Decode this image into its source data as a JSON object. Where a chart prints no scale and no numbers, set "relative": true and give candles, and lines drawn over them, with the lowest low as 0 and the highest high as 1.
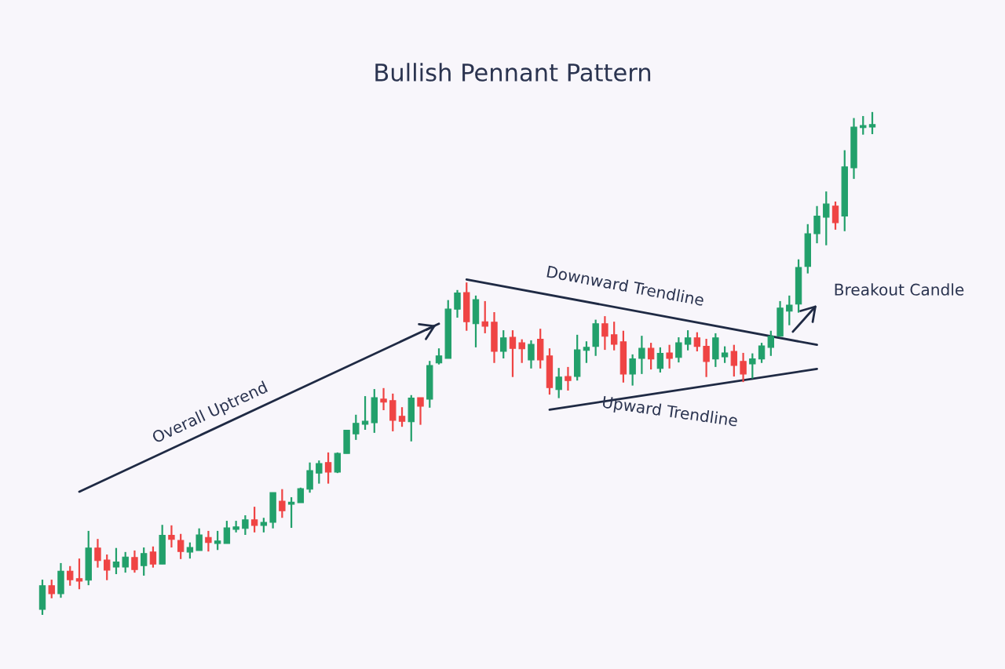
{
  "chart_data": {
    "type": "candlestick",
    "title": "Bullish Pennant Pattern",
    "relative": true,
    "tick_labels": false,
    "legend": false,
    "categories": [
      null,
      null,
      null,
      null,
      null,
      null,
      null,
      null,
      null,
      null,
      null,
      null,
      null,
      null,
      null,
      null,
      null,
      null,
      null,
      null,
      null,
      null,
      null,
      null,
      null,
      null,
      null,
      null,
      null,
      null,
      null,
      null,
      null,
      null,
      null,
      null,
      null,
      null,
      null,
      null,
      null,
      null,
      null,
      null,
      null,
      null,
      null,
      null,
      null,
      null,
      null,
      null,
      null,
      null,
      null,
      null,
      null,
      null,
      null,
      null,
      null,
      null,
      null,
      null,
      null,
      null,
      null,
      null,
      null,
      null,
      null,
      null,
      null,
      null,
      null,
      null,
      null,
      null,
      null,
      null,
      null,
      null,
      null,
      null,
      null,
      null,
      null,
      null,
      null,
      null,
      null
    ],
    "ohlc": [
      [
        0.011,
        0.07,
        0,
        0.058
      ],
      [
        0.058,
        0.07,
        0.033,
        0.042
      ],
      [
        0.042,
        0.103,
        0.034,
        0.087
      ],
      [
        0.087,
        0.097,
        0.058,
        0.07
      ],
      [
        0.072,
        0.112,
        0.051,
        0.067
      ],
      [
        0.069,
        0.167,
        0.059,
        0.133
      ],
      [
        0.133,
        0.151,
        0.094,
        0.108
      ],
      [
        0.109,
        0.12,
        0.069,
        0.089
      ],
      [
        0.095,
        0.133,
        0.081,
        0.105
      ],
      [
        0.095,
        0.125,
        0.084,
        0.115
      ],
      [
        0.114,
        0.128,
        0.084,
        0.09
      ],
      [
        0.098,
        0.134,
        0.078,
        0.122
      ],
      [
        0.125,
        0.136,
        0.094,
        0.101
      ],
      [
        0.101,
        0.179,
        0.101,
        0.158
      ],
      [
        0.158,
        0.178,
        0.134,
        0.15
      ],
      [
        0.148,
        0.161,
        0.111,
        0.126
      ],
      [
        0.125,
        0.144,
        0.112,
        0.134
      ],
      [
        0.128,
        0.172,
        0.128,
        0.159
      ],
      [
        0.154,
        0.167,
        0.126,
        0.144
      ],
      [
        0.142,
        0.167,
        0.129,
        0.147
      ],
      [
        0.142,
        0.187,
        0.142,
        0.173
      ],
      [
        0.17,
        0.187,
        0.164,
        0.175
      ],
      [
        0.172,
        0.198,
        0.159,
        0.189
      ],
      [
        0.189,
        0.215,
        0.164,
        0.178
      ],
      [
        0.178,
        0.193,
        0.164,
        0.184
      ],
      [
        0.184,
        0.243,
        0.172,
        0.243
      ],
      [
        0.226,
        0.25,
        0.193,
        0.207
      ],
      [
        0.22,
        0.234,
        0.173,
        0.223
      ],
      [
        0.223,
        0.253,
        0.223,
        0.251
      ],
      [
        0.25,
        0.303,
        0.243,
        0.287
      ],
      [
        0.282,
        0.307,
        0.261,
        0.301
      ],
      [
        0.303,
        0.323,
        0.261,
        0.284
      ],
      [
        0.284,
        0.323,
        0.282,
        0.321
      ],
      [
        0.321,
        0.367,
        0.321,
        0.367
      ],
      [
        0.36,
        0.398,
        0.348,
        0.381
      ],
      [
        0.379,
        0.435,
        0.368,
        0.385
      ],
      [
        0.382,
        0.449,
        0.362,
        0.432
      ],
      [
        0.429,
        0.451,
        0.407,
        0.423
      ],
      [
        0.426,
        0.44,
        0.365,
        0.387
      ],
      [
        0.395,
        0.413,
        0.374,
        0.385
      ],
      [
        0.384,
        0.437,
        0.345,
        0.431
      ],
      [
        0.432,
        0.432,
        0.378,
        0.415
      ],
      [
        0.429,
        0.505,
        0.412,
        0.496
      ],
      [
        0.501,
        0.53,
        0.498,
        0.515
      ],
      [
        0.51,
        0.626,
        0.51,
        0.608
      ],
      [
        0.608,
        0.646,
        0.591,
        0.64
      ],
      [
        0.641,
        0.661,
        0.565,
        0.583
      ],
      [
        0.579,
        0.635,
        0.532,
        0.627
      ],
      [
        0.583,
        0.624,
        0.56,
        0.574
      ],
      [
        0.582,
        0.602,
        0.501,
        0.524
      ],
      [
        0.524,
        0.566,
        0.51,
        0.551
      ],
      [
        0.552,
        0.566,
        0.473,
        0.53
      ],
      [
        0.541,
        0.548,
        0.501,
        0.529
      ],
      [
        0.507,
        0.546,
        0.49,
        0.538
      ],
      [
        0.548,
        0.569,
        0.49,
        0.507
      ],
      [
        0.515,
        0.53,
        0.438,
        0.452
      ],
      [
        0.448,
        0.491,
        0.431,
        0.473
      ],
      [
        0.474,
        0.493,
        0.446,
        0.466
      ],
      [
        0.474,
        0.557,
        0.466,
        0.527
      ],
      [
        0.526,
        0.544,
        0.501,
        0.532
      ],
      [
        0.534,
        0.587,
        0.515,
        0.579
      ],
      [
        0.579,
        0.594,
        0.527,
        0.554
      ],
      [
        0.557,
        0.583,
        0.526,
        0.538
      ],
      [
        0.543,
        0.565,
        0.462,
        0.479
      ],
      [
        0.479,
        0.518,
        0.456,
        0.509
      ],
      [
        0.51,
        0.555,
        0.479,
        0.53
      ],
      [
        0.53,
        0.541,
        0.488,
        0.509
      ],
      [
        0.49,
        0.532,
        0.482,
        0.52
      ],
      [
        0.521,
        0.537,
        0.49,
        0.51
      ],
      [
        0.512,
        0.552,
        0.502,
        0.541
      ],
      [
        0.538,
        0.566,
        0.526,
        0.551
      ],
      [
        0.551,
        0.562,
        0.524,
        0.534
      ],
      [
        0.534,
        0.549,
        0.473,
        0.504
      ],
      [
        0.509,
        0.56,
        0.493,
        0.551
      ],
      [
        0.513,
        0.534,
        0.501,
        0.521
      ],
      [
        0.524,
        0.537,
        0.474,
        0.496
      ],
      [
        0.504,
        0.521,
        0.463,
        0.479
      ],
      [
        0.499,
        0.52,
        0.47,
        0.509
      ],
      [
        0.509,
        0.541,
        0.501,
        0.535
      ],
      [
        0.532,
        0.565,
        0.515,
        0.554
      ],
      [
        0.554,
        0.624,
        0.554,
        0.61
      ],
      [
        0.604,
        0.635,
        0.576,
        0.616
      ],
      [
        0.618,
        0.707,
        0.601,
        0.691
      ],
      [
        0.693,
        0.777,
        0.679,
        0.758
      ],
      [
        0.758,
        0.813,
        0.739,
        0.793
      ],
      [
        0.791,
        0.842,
        0.735,
        0.817
      ],
      [
        0.813,
        0.822,
        0.766,
        0.78
      ],
      [
        0.793,
        0.924,
        0.763,
        0.891
      ],
      [
        0.889,
        0.988,
        0.867,
        0.97
      ],
      [
        0.969,
        0.992,
        0.955,
        0.973
      ],
      [
        0.97,
        1.0,
        0.956,
        0.975
      ]
    ],
    "colors": [
      "#22a06b",
      "#ef4444",
      "#22a06b",
      "#ef4444",
      "#ef4444",
      "#22a06b",
      "#ef4444",
      "#ef4444",
      "#22a06b",
      "#22a06b",
      "#ef4444",
      "#22a06b",
      "#ef4444",
      "#22a06b",
      "#ef4444",
      "#ef4444",
      "#22a06b",
      "#22a06b",
      "#ef4444",
      "#22a06b",
      "#22a06b",
      "#22a06b",
      "#22a06b",
      "#ef4444",
      "#22a06b",
      "#22a06b",
      "#ef4444",
      "#22a06b",
      "#22a06b",
      "#22a06b",
      "#22a06b",
      "#ef4444",
      "#22a06b",
      "#22a06b",
      "#22a06b",
      "#22a06b",
      "#22a06b",
      "#ef4444",
      "#ef4444",
      "#ef4444",
      "#22a06b",
      "#ef4444",
      "#22a06b",
      "#22a06b",
      "#22a06b",
      "#22a06b",
      "#ef4444",
      "#22a06b",
      "#ef4444",
      "#ef4444",
      "#22a06b",
      "#ef4444",
      "#ef4444",
      "#22a06b",
      "#ef4444",
      "#ef4444",
      "#22a06b",
      "#ef4444",
      "#22a06b",
      "#22a06b",
      "#22a06b",
      "#ef4444",
      "#ef4444",
      "#ef4444",
      "#22a06b",
      "#22a06b",
      "#ef4444",
      "#22a06b",
      "#ef4444",
      "#22a06b",
      "#22a06b",
      "#ef4444",
      "#ef4444",
      "#22a06b",
      "#22a06b",
      "#ef4444",
      "#ef4444",
      "#22a06b",
      "#22a06b",
      "#22a06b",
      "#22a06b",
      "#22a06b",
      "#22a06b",
      "#22a06b",
      "#22a06b",
      "#22a06b",
      "#ef4444",
      "#22a06b",
      "#22a06b",
      "#22a06b",
      "#22a06b"
    ],
    "series": [
      {
        "type": "line",
        "color": "#1f2a44",
        "values": [
          null,
          null,
          null,
          null,
          0.245,
          null,
          null,
          null,
          null,
          null,
          null,
          null,
          null,
          null,
          null,
          null,
          null,
          null,
          null,
          null,
          null,
          null,
          null,
          null,
          null,
          null,
          null,
          null,
          null,
          null,
          null,
          null,
          null,
          null,
          null,
          null,
          null,
          null,
          null,
          null,
          null,
          null,
          null,
          0.579,
          null,
          null,
          null,
          null,
          null,
          null,
          null,
          null,
          null,
          null,
          null,
          null,
          null,
          null,
          null,
          null,
          null,
          null,
          null,
          null,
          null,
          null,
          null,
          null,
          null,
          null,
          null,
          null,
          null,
          null,
          null,
          null,
          null,
          null,
          null,
          null,
          null,
          null,
          null,
          null,
          null,
          null,
          null,
          null,
          null,
          null,
          null
        ]
      },
      {
        "type": "line",
        "color": "#1f2a44",
        "values": [
          null,
          null,
          null,
          null,
          null,
          null,
          null,
          null,
          null,
          null,
          null,
          null,
          null,
          null,
          null,
          null,
          null,
          null,
          null,
          null,
          null,
          null,
          null,
          null,
          null,
          null,
          null,
          null,
          null,
          null,
          null,
          null,
          null,
          null,
          null,
          null,
          null,
          null,
          null,
          null,
          null,
          null,
          null,
          null,
          null,
          null,
          0.667,
          null,
          null,
          null,
          null,
          null,
          null,
          null,
          null,
          null,
          null,
          null,
          null,
          null,
          null,
          null,
          null,
          null,
          null,
          null,
          null,
          null,
          null,
          null,
          null,
          null,
          null,
          null,
          null,
          null,
          null,
          null,
          null,
          null,
          null,
          null,
          null,
          null,
          0.537,
          null,
          null,
          null,
          null,
          null,
          null
        ]
      },
      {
        "type": "line",
        "color": "#1f2a44",
        "values": [
          null,
          null,
          null,
          null,
          null,
          null,
          null,
          null,
          null,
          null,
          null,
          null,
          null,
          null,
          null,
          null,
          null,
          null,
          null,
          null,
          null,
          null,
          null,
          null,
          null,
          null,
          null,
          null,
          null,
          null,
          null,
          null,
          null,
          null,
          null,
          null,
          null,
          null,
          null,
          null,
          null,
          null,
          null,
          null,
          null,
          null,
          null,
          null,
          null,
          null,
          null,
          null,
          null,
          null,
          null,
          0.408,
          null,
          null,
          null,
          null,
          null,
          null,
          null,
          null,
          null,
          null,
          null,
          null,
          null,
          null,
          null,
          null,
          null,
          null,
          null,
          null,
          null,
          null,
          null,
          null,
          null,
          null,
          null,
          null,
          0.489,
          null,
          null,
          null,
          null,
          null,
          null
        ]
      }
    ],
    "annotations": [
      "Overall Uptrend",
      "Downward Trendline",
      "Upward Trendline",
      "Breakout Candle"
    ]
  }
}
